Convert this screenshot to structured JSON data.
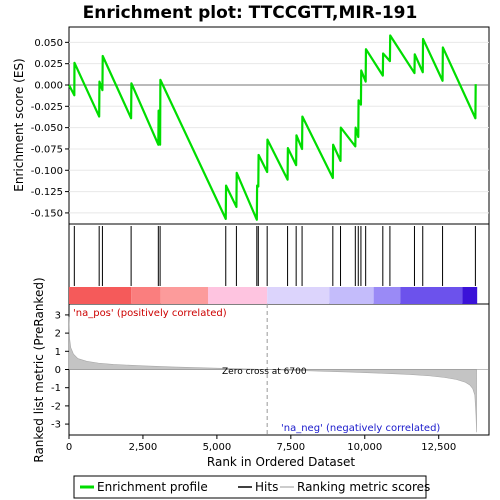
{
  "chart_data": {
    "type": "line",
    "title": "Enrichment plot: TTCCGTT,MIR-191",
    "enrichment_panel": {
      "ylabel": "Enrichment score (ES)",
      "ylim": [
        -0.163,
        0.068
      ],
      "yticks": [
        0.05,
        0.025,
        0.0,
        -0.025,
        -0.05,
        -0.075,
        -0.1,
        -0.125,
        -0.15
      ],
      "ytick_labels": [
        "0.050",
        "0.025",
        "0.000",
        "-0.025",
        "-0.050",
        "-0.075",
        "-0.100",
        "-0.125",
        "-0.150"
      ],
      "series": [
        {
          "name": "Enrichment profile",
          "color": "#00dd00",
          "x": [
            0,
            180,
            185,
            1020,
            1030,
            1130,
            1140,
            2100,
            2110,
            3020,
            3030,
            3080,
            3090,
            5300,
            5310,
            5660,
            5670,
            6350,
            6360,
            6400,
            6410,
            6700,
            6710,
            7390,
            7400,
            7680,
            7690,
            7880,
            7890,
            8920,
            8930,
            9180,
            9190,
            9680,
            9690,
            9780,
            9790,
            9870,
            9880,
            10030,
            10040,
            10610,
            10620,
            10850,
            10860,
            11680,
            11690,
            11960,
            11970,
            12630,
            12640,
            13740,
            13750
          ],
          "y": [
            0.0,
            -0.012,
            0.026,
            -0.037,
            0.004,
            -0.006,
            0.034,
            -0.039,
            0.002,
            -0.07,
            -0.03,
            -0.07,
            0.006,
            -0.157,
            -0.118,
            -0.143,
            -0.103,
            -0.158,
            -0.118,
            -0.119,
            -0.082,
            -0.102,
            -0.064,
            -0.111,
            -0.074,
            -0.094,
            -0.059,
            -0.075,
            -0.037,
            -0.109,
            -0.07,
            -0.089,
            -0.05,
            -0.072,
            -0.05,
            -0.061,
            -0.018,
            -0.023,
            0.017,
            0.004,
            0.042,
            0.011,
            0.037,
            0.028,
            0.058,
            0.014,
            0.036,
            0.015,
            0.054,
            0.005,
            0.044,
            -0.039,
            0.001
          ]
        }
      ]
    },
    "hits_panel": {
      "legend_label": "Hits",
      "hit_ranks": [
        180,
        1020,
        1130,
        2100,
        3020,
        3080,
        5300,
        5660,
        6350,
        6400,
        6700,
        7390,
        7680,
        7880,
        8920,
        9180,
        9680,
        9780,
        9870,
        10030,
        10610,
        10850,
        11680,
        11960,
        12630,
        13740
      ]
    },
    "color_band": {
      "segments": [
        {
          "from": 0,
          "to": 2100,
          "color": "#f55a5a"
        },
        {
          "from": 2100,
          "to": 3100,
          "color": "#fa7e7e"
        },
        {
          "from": 3100,
          "to": 4700,
          "color": "#fc9b9b"
        },
        {
          "from": 4700,
          "to": 6700,
          "color": "#fec4e0"
        },
        {
          "from": 6700,
          "to": 8800,
          "color": "#dcd4fc"
        },
        {
          "from": 8800,
          "to": 10300,
          "color": "#c4bcfb"
        },
        {
          "from": 10300,
          "to": 11200,
          "color": "#9a8af6"
        },
        {
          "from": 11200,
          "to": 13300,
          "color": "#6c52ec"
        },
        {
          "from": 13300,
          "to": 13800,
          "color": "#3a12d8"
        }
      ]
    },
    "metric_panel": {
      "ylabel": "Ranked list metric (PreRanked)",
      "xlabel": "Rank in Ordered Dataset",
      "ylim": [
        -3.6,
        3.6
      ],
      "yticks": [
        3,
        2,
        1,
        0,
        -1,
        -2,
        -3
      ],
      "ytick_labels": [
        "3",
        "2",
        "1",
        "0",
        "-1",
        "-2",
        "-3"
      ],
      "xlim": [
        0,
        14200
      ],
      "xticks": [
        0,
        2500,
        5000,
        7500,
        10000,
        12500
      ],
      "xtick_labels": [
        "0",
        "2,500",
        "5,000",
        "7,500",
        "10,000",
        "12,500"
      ],
      "metric_curve": {
        "x": [
          0,
          20,
          60,
          150,
          300,
          600,
          1000,
          1500,
          2500,
          3500,
          5000,
          6000,
          6700,
          7500,
          8500,
          9500,
          10500,
          11500,
          12200,
          12700,
          13100,
          13400,
          13550,
          13650,
          13720,
          13760,
          13780
        ],
        "y": [
          2.9,
          1.7,
          1.2,
          0.85,
          0.6,
          0.45,
          0.35,
          0.28,
          0.2,
          0.14,
          0.07,
          0.03,
          0.0,
          -0.04,
          -0.09,
          -0.14,
          -0.2,
          -0.27,
          -0.35,
          -0.44,
          -0.55,
          -0.7,
          -0.85,
          -1.05,
          -1.4,
          -2.5,
          -3.45
        ]
      },
      "zero_cross_rank": 6700,
      "zero_cross_label": "Zero cross at 6700",
      "pos_label": "'na_pos' (positively correlated)",
      "neg_label": "'na_neg' (negatively correlated)"
    },
    "legend": [
      {
        "label": "Enrichment profile",
        "color": "#00dd00"
      },
      {
        "label": "Hits",
        "color": "#000000"
      },
      {
        "label": "Ranking metric scores",
        "color": "#bbbbbb"
      }
    ]
  }
}
